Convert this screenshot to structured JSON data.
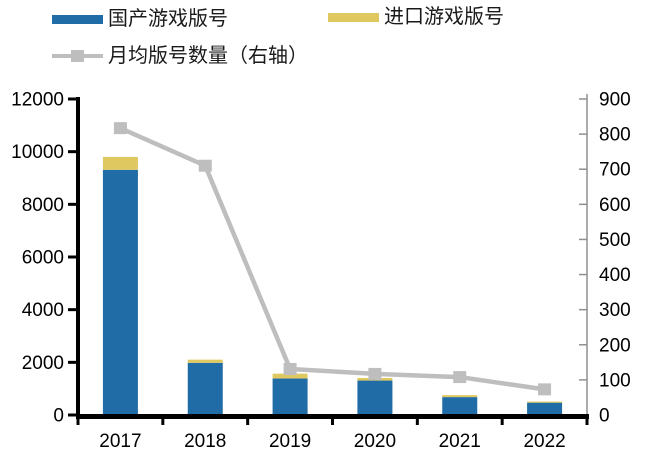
{
  "page": {
    "background": "#ffffff"
  },
  "legend": {
    "items": [
      {
        "label": "国产游戏版号",
        "swatch": "bar",
        "color": "#1F6CA6"
      },
      {
        "label": "进口游戏版号",
        "swatch": "bar",
        "color": "#E0C861"
      },
      {
        "label": "月均版号数量（右轴）",
        "swatch": "line-marker",
        "color": "#BEBEBE"
      }
    ]
  },
  "chart_data": {
    "type": "bar",
    "subtype": "stacked-bars-with-line-dual-axis",
    "title": "",
    "categories": [
      "2017",
      "2018",
      "2019",
      "2020",
      "2021",
      "2022"
    ],
    "series": [
      {
        "name": "国产游戏版号",
        "kind": "bar",
        "stack": "licenses",
        "axis": "left",
        "color": "#1F6CA6",
        "values": [
          9310,
          1982,
          1385,
          1308,
          679,
          468
        ]
      },
      {
        "name": "进口游戏版号",
        "kind": "bar",
        "stack": "licenses",
        "axis": "left",
        "color": "#E0C861",
        "values": [
          490,
          120,
          185,
          97,
          76,
          44
        ]
      },
      {
        "name": "月均版号数量（右轴）",
        "kind": "line",
        "axis": "right",
        "color": "#BEBEBE",
        "marker": "square",
        "values": [
          817,
          710,
          131,
          117,
          108,
          73
        ]
      }
    ],
    "left_axis": {
      "min": 0,
      "max": 12000,
      "step": 2000,
      "tick_labels": [
        "0",
        "2000",
        "4000",
        "6000",
        "8000",
        "10000",
        "12000"
      ],
      "color": "#000000"
    },
    "right_axis": {
      "min": 0,
      "max": 900,
      "step": 100,
      "tick_labels": [
        "0",
        "100",
        "200",
        "300",
        "400",
        "500",
        "600",
        "700",
        "800",
        "900"
      ],
      "color": "#909090"
    },
    "xlabel": "",
    "ylabel": "",
    "grid": false,
    "legend_position": "top-left",
    "axis_colors": {
      "left_line": "#000000",
      "bottom_line": "#000000",
      "right_line": "#909090",
      "tick_text": "#000000"
    }
  }
}
